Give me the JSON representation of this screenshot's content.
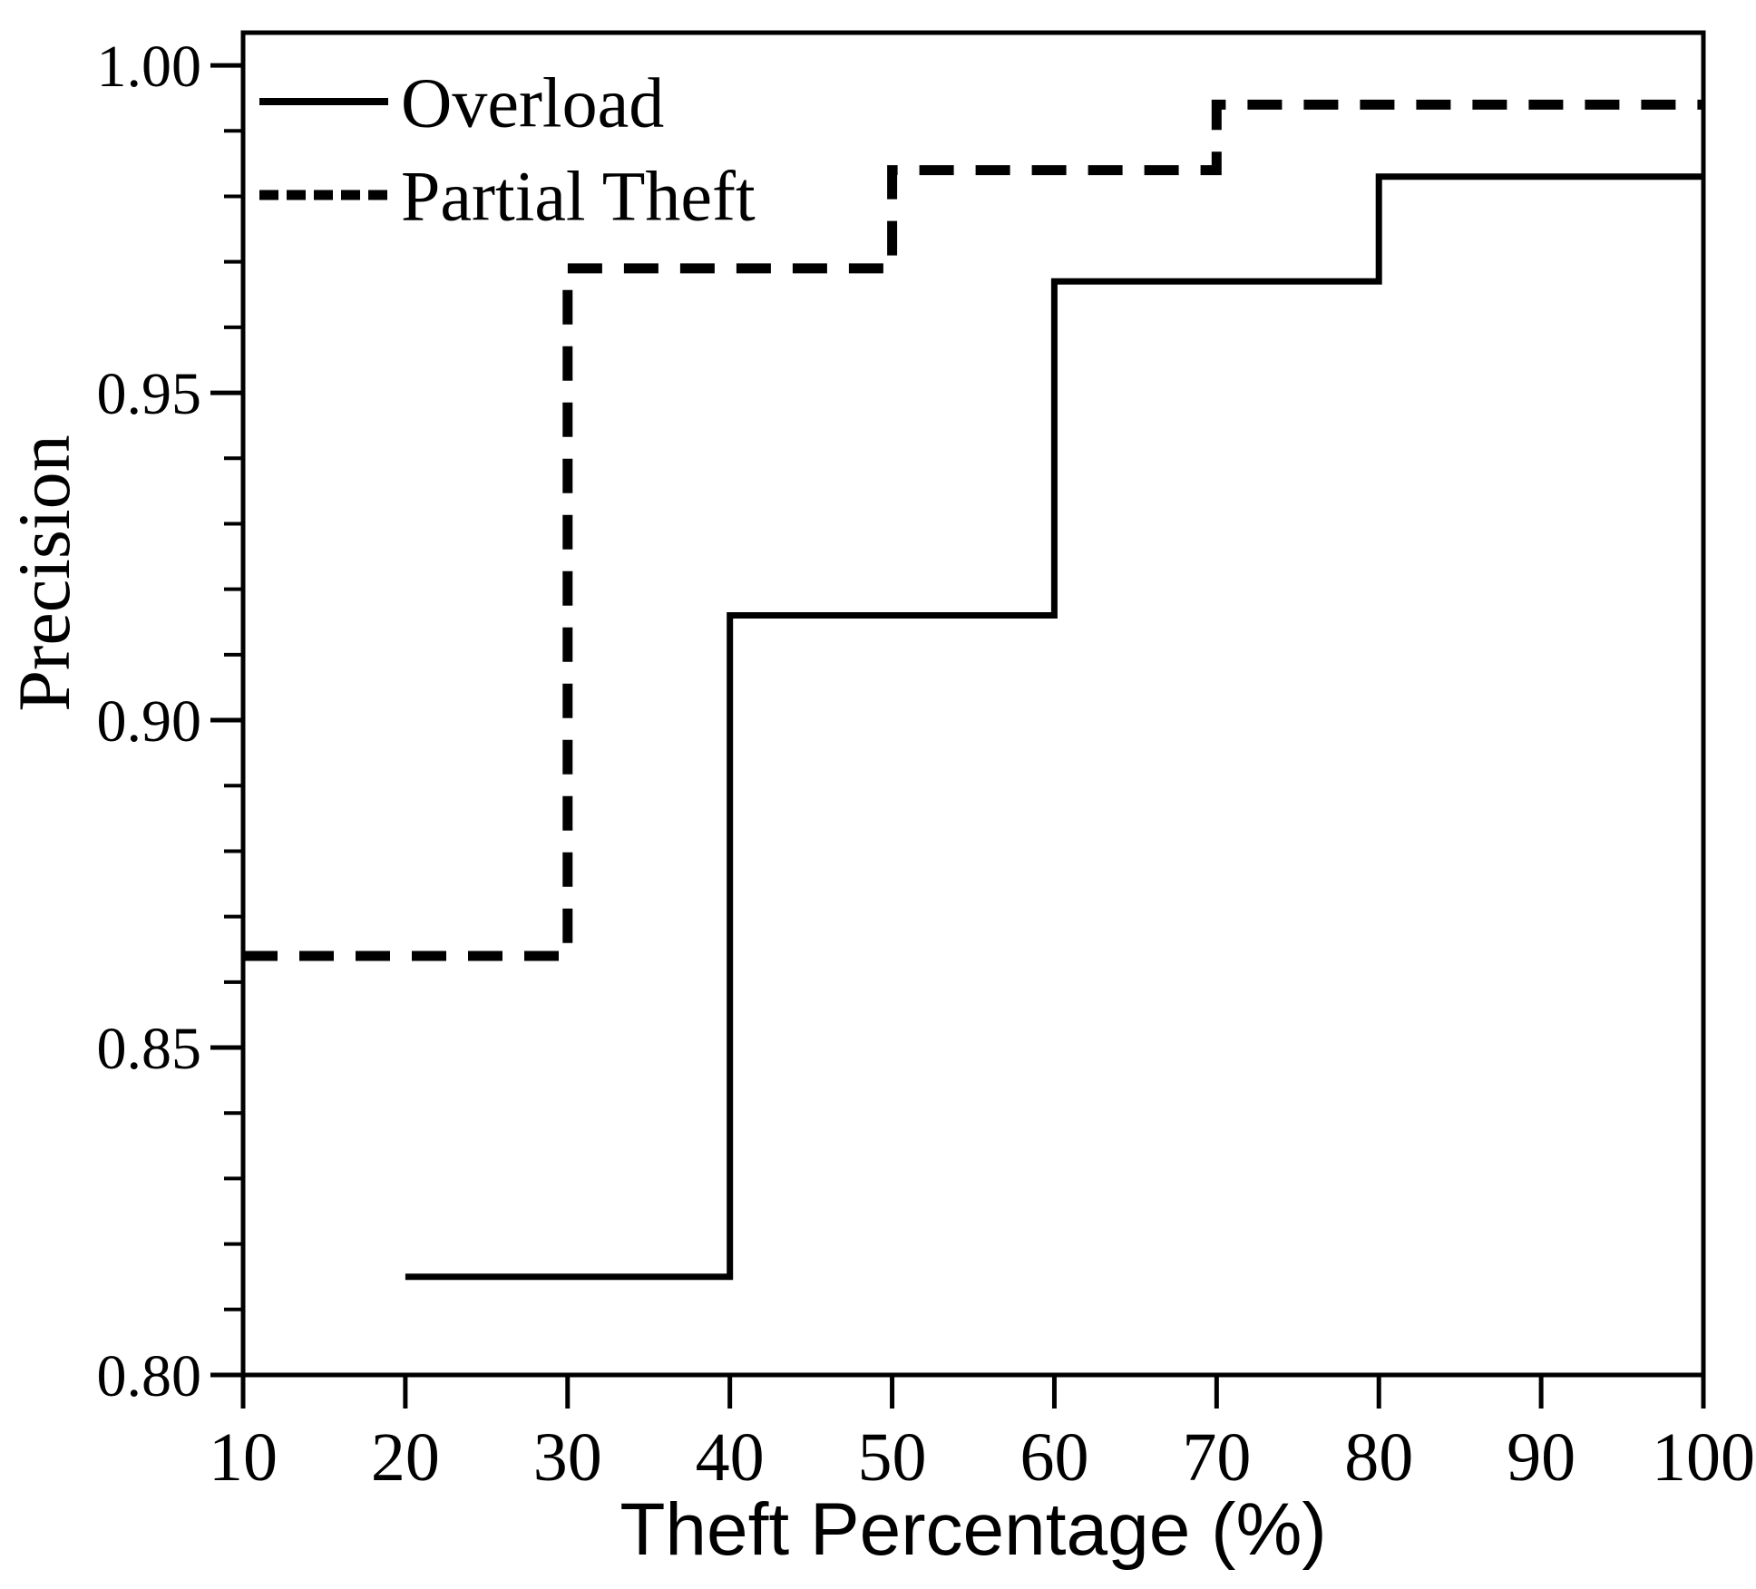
{
  "figure": {
    "background_color": "#ffffff",
    "ink_color": "#000000"
  },
  "chart_data": {
    "type": "line",
    "subtype": "step-post",
    "xlabel": "Theft Percentage (%)",
    "ylabel": "Precision",
    "xlim": [
      10,
      100
    ],
    "ylim": [
      0.8,
      1.005
    ],
    "grid": false,
    "x_ticks": [
      10,
      20,
      30,
      40,
      50,
      60,
      70,
      80,
      90,
      100
    ],
    "x_tick_labels": [
      "10",
      "20",
      "30",
      "40",
      "50",
      "60",
      "70",
      "80",
      "90",
      "100"
    ],
    "y_ticks": [
      0.8,
      0.85,
      0.9,
      0.95,
      1.0
    ],
    "y_tick_labels": [
      "0.80",
      "0.85",
      "0.90",
      "0.95",
      "1.00"
    ],
    "y_minor_tick_step": 0.01,
    "legend": {
      "position": "upper-left-inside",
      "entries": [
        "Overload",
        "Partial Theft"
      ]
    },
    "series": [
      {
        "name": "Overload",
        "line_style": "solid",
        "color": "#000000",
        "x_start": 20,
        "x_end": 100,
        "steps": [
          {
            "x_from": 20,
            "x_to": 40,
            "y": 0.815
          },
          {
            "x_from": 40,
            "x_to": 60,
            "y": 0.916
          },
          {
            "x_from": 60,
            "x_to": 80,
            "y": 0.967
          },
          {
            "x_from": 80,
            "x_to": 100,
            "y": 0.983
          }
        ]
      },
      {
        "name": "Partial Theft",
        "line_style": "dashed",
        "color": "#000000",
        "x_start": 10,
        "x_end": 100,
        "steps": [
          {
            "x_from": 10,
            "x_to": 30,
            "y": 0.864
          },
          {
            "x_from": 30,
            "x_to": 50,
            "y": 0.969
          },
          {
            "x_from": 50,
            "x_to": 70,
            "y": 0.984
          },
          {
            "x_from": 70,
            "x_to": 100,
            "y": 0.994
          }
        ]
      }
    ]
  }
}
